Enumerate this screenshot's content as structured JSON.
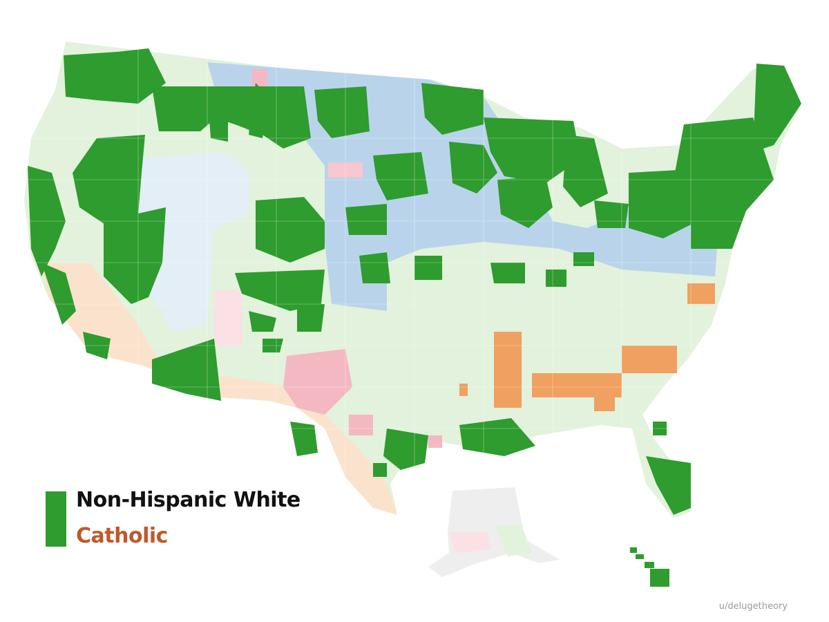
{
  "legend": {
    "primary_label": "Non-Hispanic White",
    "secondary_label": "Catholic"
  },
  "credit": "u/delugetheory",
  "colors": {
    "non_hispanic_white_strong": "#2e9c2e",
    "non_hispanic_white_light": "#e2f2dc",
    "catholic_strong": "#f0a060",
    "catholic_light": "#fbe2cc",
    "lutheran_light": "#b9d4ea",
    "mormon_light": "#e4eef7",
    "pink_light": "#f4b8c2",
    "no_data": "#eeeeee",
    "label_dark": "#111111",
    "label_catholic": "#c0582a"
  }
}
